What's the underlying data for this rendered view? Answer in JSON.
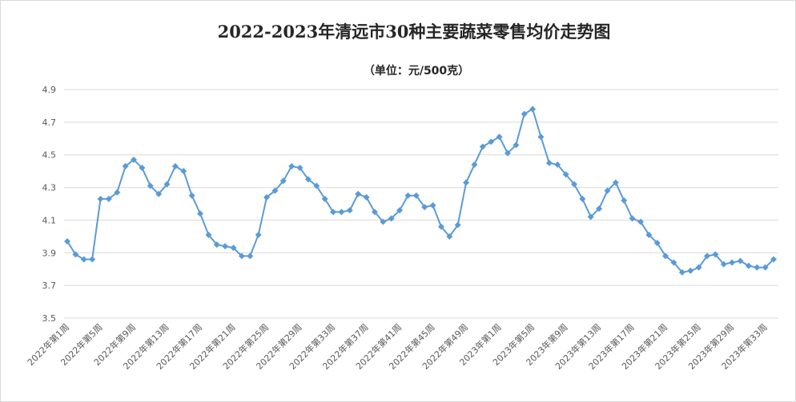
{
  "chart_data": {
    "type": "line",
    "title": "2022-2023年清远市30种主要蔬菜零售均价走势图",
    "subtitle": "（单位：元/500克）",
    "ylim": [
      3.5,
      4.9
    ],
    "yticks": [
      3.5,
      3.7,
      3.9,
      4.1,
      4.3,
      4.5,
      4.7,
      4.9
    ],
    "grid": true,
    "legend": "none",
    "series_color": "#5B9BD5",
    "x_labels": [
      "2022年第1周",
      "2022年第5周",
      "2022年第9周",
      "2022年第13周",
      "2022年第17周",
      "2022年第21周",
      "2022年第25周",
      "2022年第29周",
      "2022年第33周",
      "2022年第37周",
      "2022年第41周",
      "2022年第45周",
      "2022年第49周",
      "2023年第1周",
      "2023年第5周",
      "2023年第9周",
      "2023年第13周",
      "2023年第17周",
      "2023年第21周",
      "2023年第25周",
      "2023年第29周",
      "2023年第33周"
    ],
    "values": [
      3.97,
      3.89,
      3.86,
      3.86,
      4.23,
      4.23,
      4.27,
      4.43,
      4.47,
      4.42,
      4.31,
      4.26,
      4.32,
      4.43,
      4.4,
      4.25,
      4.14,
      4.01,
      3.95,
      3.94,
      3.93,
      3.88,
      3.88,
      4.01,
      4.24,
      4.28,
      4.34,
      4.43,
      4.42,
      4.35,
      4.31,
      4.23,
      4.15,
      4.15,
      4.16,
      4.26,
      4.24,
      4.15,
      4.09,
      4.11,
      4.16,
      4.25,
      4.25,
      4.18,
      4.19,
      4.06,
      4.0,
      4.07,
      4.33,
      4.44,
      4.55,
      4.58,
      4.61,
      4.51,
      4.56,
      4.75,
      4.78,
      4.61,
      4.45,
      4.44,
      4.38,
      4.32,
      4.23,
      4.12,
      4.17,
      4.28,
      4.33,
      4.22,
      4.11,
      4.09,
      4.01,
      3.96,
      3.88,
      3.84,
      3.78,
      3.79,
      3.81,
      3.88,
      3.89,
      3.83,
      3.84,
      3.85,
      3.82,
      3.81,
      3.81,
      3.86
    ]
  }
}
